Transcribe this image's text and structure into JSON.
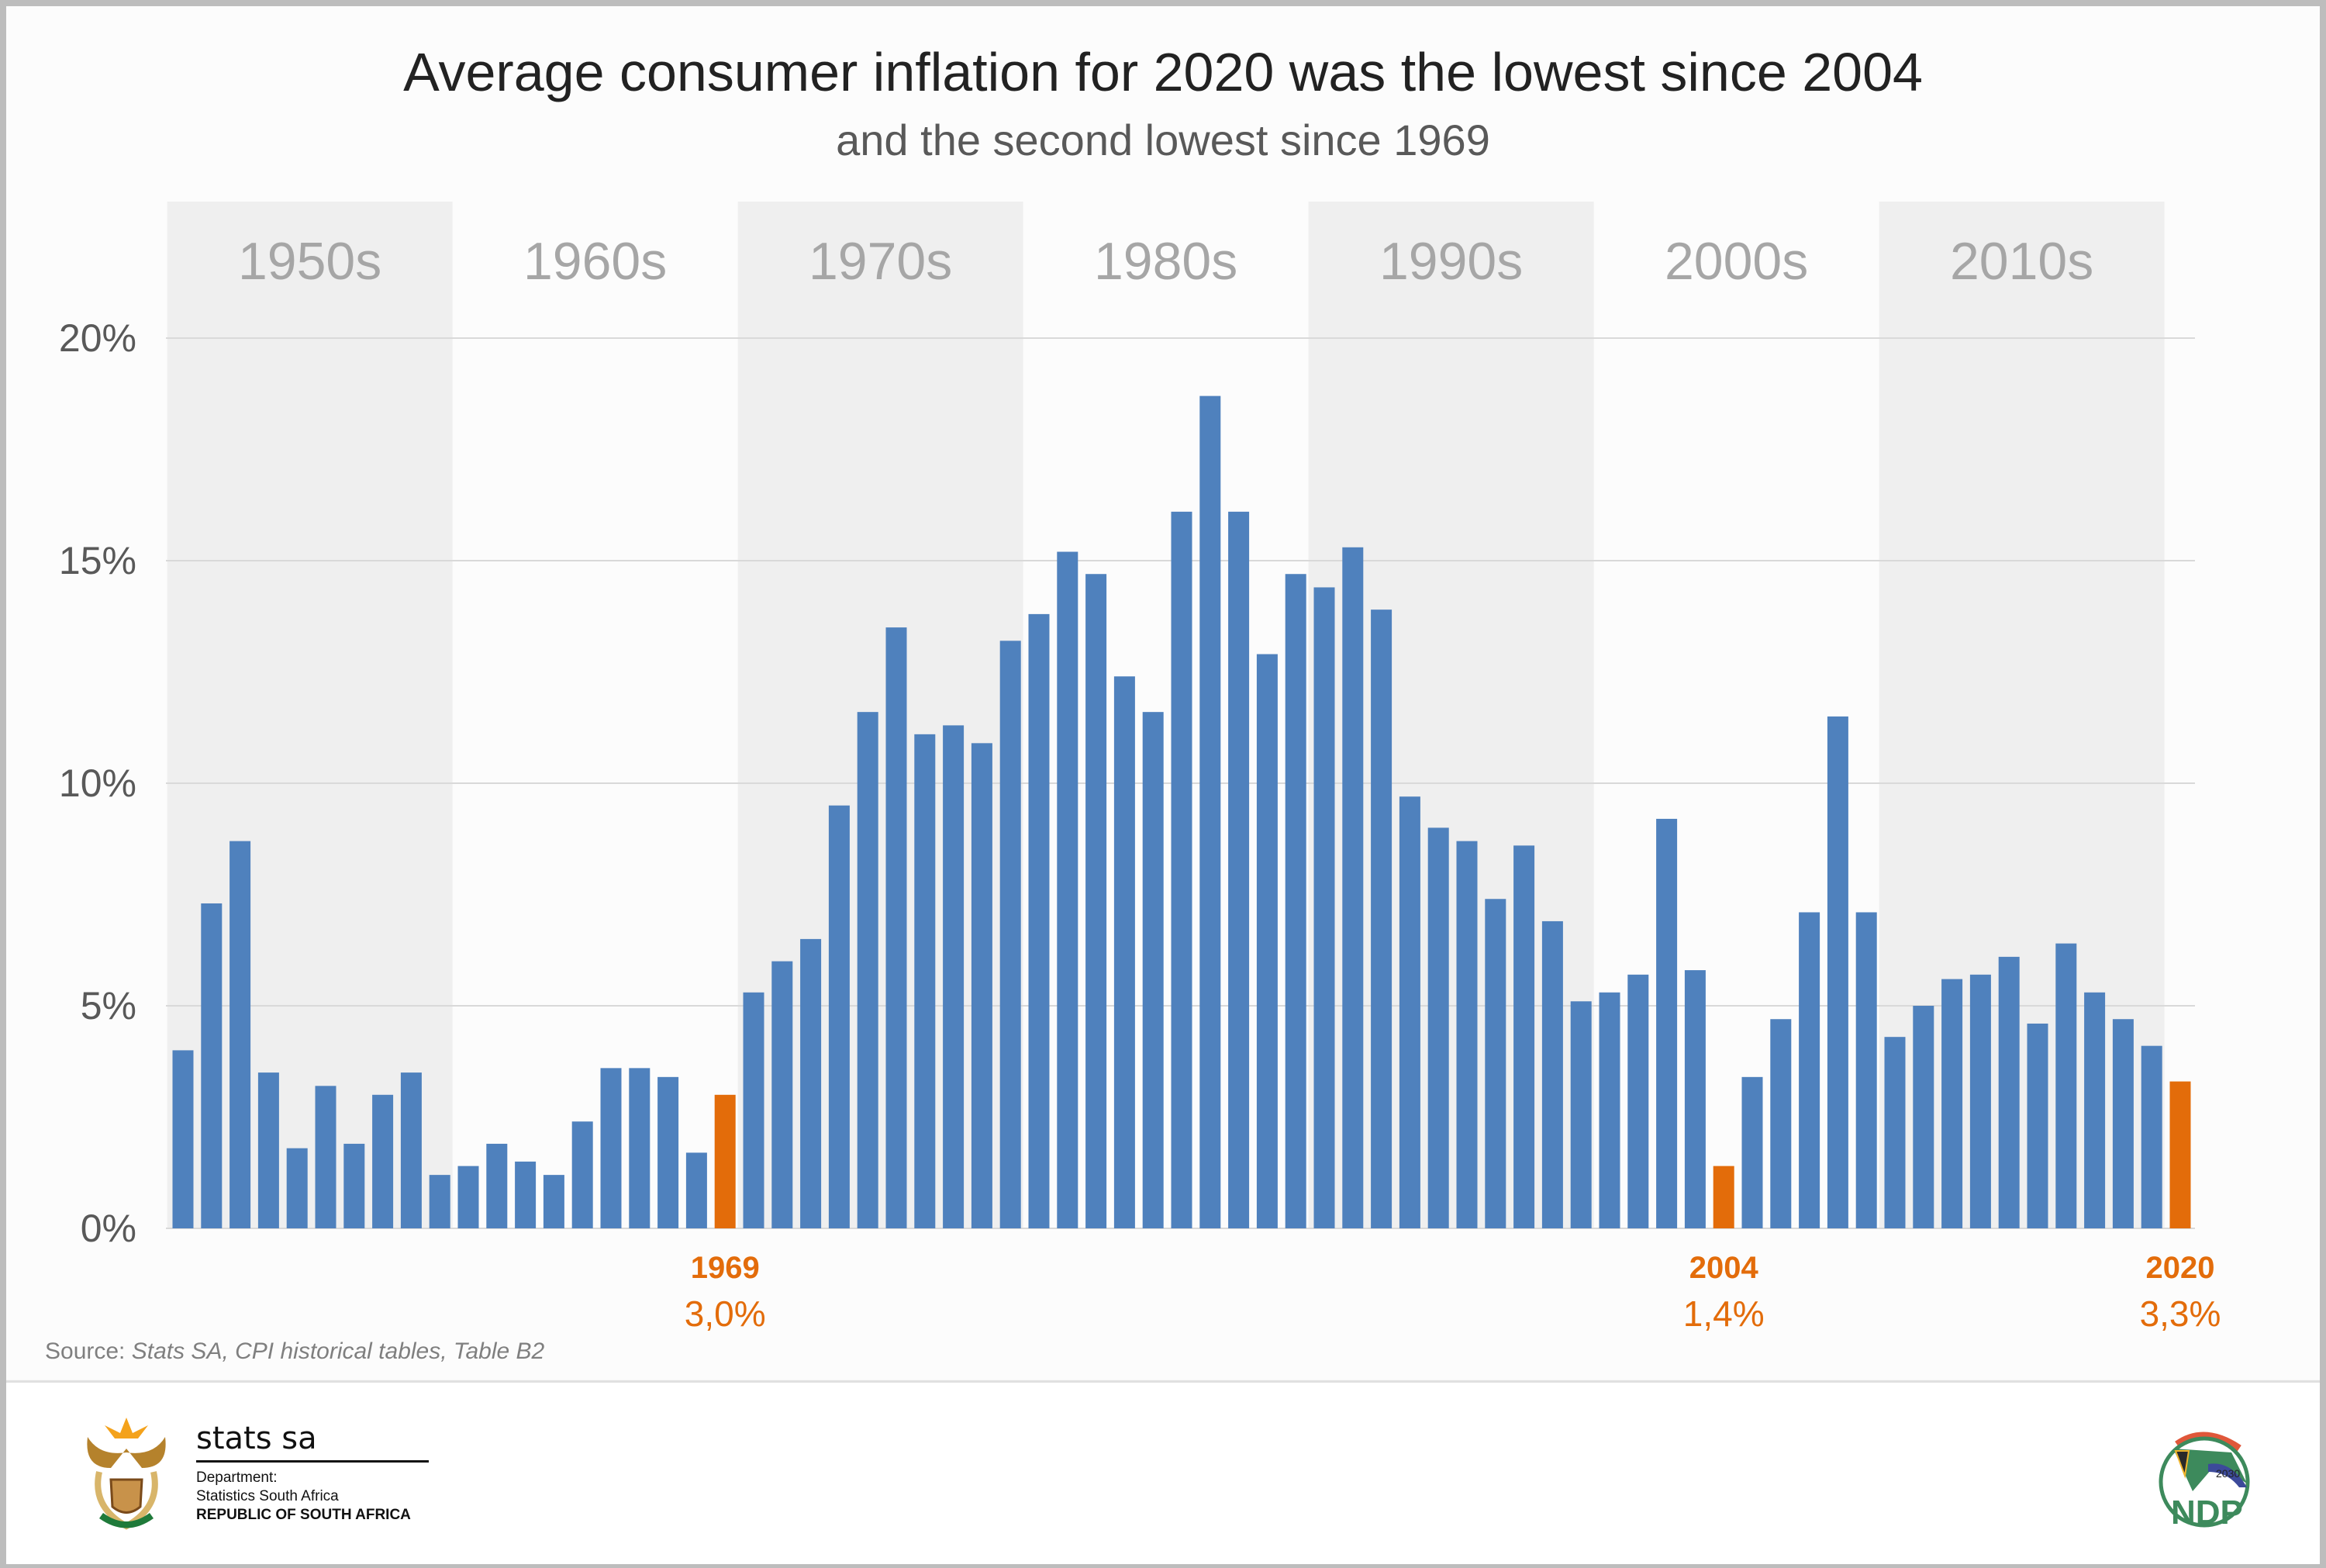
{
  "title": "Average consumer inflation for 2020 was the lowest since 2004",
  "subtitle": "and the second lowest since 1969",
  "source_prefix": "Source: ",
  "source_text": "Stats SA, CPI historical tables, Table B2",
  "footer": {
    "stats_logo": "stats sa",
    "dept_line1": "Department:",
    "dept_line2": "Statistics South Africa",
    "dept_line3": "REPUBLIC OF SOUTH AFRICA",
    "ndp_logo": "NDP 2030"
  },
  "chart_data": {
    "type": "bar",
    "title": "Average consumer inflation for 2020 was the lowest since 2004",
    "subtitle": "and the second lowest since 1969",
    "ylim": [
      0,
      20
    ],
    "yticks": [
      "0%",
      "5%",
      "10%",
      "15%",
      "20%"
    ],
    "ytick_values": [
      0,
      5,
      10,
      15,
      20
    ],
    "grid": true,
    "decades": [
      "1950s",
      "1960s",
      "1970s",
      "1980s",
      "1990s",
      "2000s",
      "2010s"
    ],
    "decade_shaded": [
      true,
      false,
      true,
      false,
      true,
      false,
      true
    ],
    "years": [
      1950,
      1951,
      1952,
      1953,
      1954,
      1955,
      1956,
      1957,
      1958,
      1959,
      1960,
      1961,
      1962,
      1963,
      1964,
      1965,
      1966,
      1967,
      1968,
      1969,
      1970,
      1971,
      1972,
      1973,
      1974,
      1975,
      1976,
      1977,
      1978,
      1979,
      1980,
      1981,
      1982,
      1983,
      1984,
      1985,
      1986,
      1987,
      1988,
      1989,
      1990,
      1991,
      1992,
      1993,
      1994,
      1995,
      1996,
      1997,
      1998,
      1999,
      2000,
      2001,
      2002,
      2003,
      2004,
      2005,
      2006,
      2007,
      2008,
      2009,
      2010,
      2011,
      2012,
      2013,
      2014,
      2015,
      2016,
      2017,
      2018,
      2019,
      2020
    ],
    "values": [
      4.0,
      7.3,
      8.7,
      3.5,
      1.8,
      3.2,
      1.9,
      3.0,
      3.5,
      1.2,
      1.4,
      1.9,
      1.5,
      1.2,
      2.4,
      3.6,
      3.6,
      3.4,
      1.7,
      3.0,
      5.3,
      6.0,
      6.5,
      9.5,
      11.6,
      13.5,
      11.1,
      11.3,
      10.9,
      13.2,
      13.8,
      15.2,
      14.7,
      12.4,
      11.6,
      16.1,
      18.7,
      16.1,
      12.9,
      14.7,
      14.4,
      15.3,
      13.9,
      9.7,
      9.0,
      8.7,
      7.4,
      8.6,
      6.9,
      5.1,
      5.3,
      5.7,
      9.2,
      5.8,
      1.4,
      3.4,
      4.7,
      7.1,
      11.5,
      7.1,
      4.3,
      5.0,
      5.6,
      5.7,
      6.1,
      4.6,
      6.4,
      5.3,
      4.7,
      4.1,
      3.3
    ],
    "highlighted_years": [
      1969,
      2004,
      2020
    ],
    "annotations": [
      {
        "year": "1969",
        "value": "3,0%"
      },
      {
        "year": "2004",
        "value": "1,4%"
      },
      {
        "year": "2020",
        "value": "3,3%"
      }
    ],
    "colors": {
      "bar": "#4f81bd",
      "highlight": "#e36c0a",
      "band": "#efefef",
      "decade_label": "#a6a6a6",
      "grid": "#d9d9d9"
    }
  }
}
